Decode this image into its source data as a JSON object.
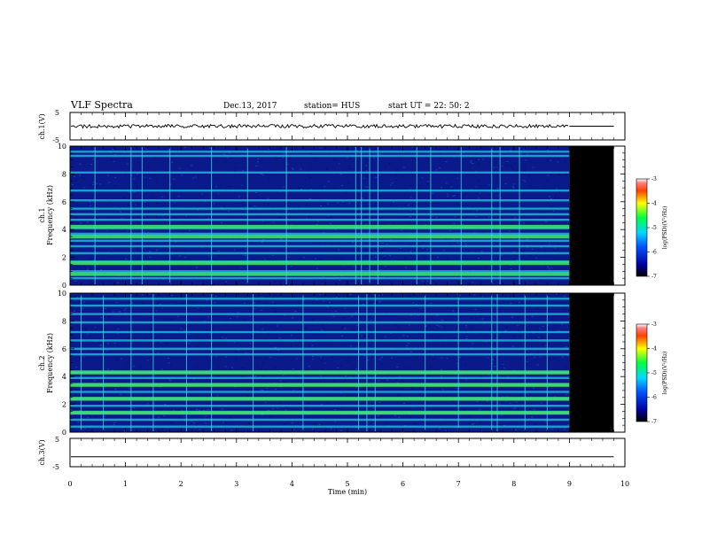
{
  "header": {
    "title": "VLF Spectra",
    "date": "Dec.13, 2017",
    "station": "station= HUS",
    "start_ut": "start  UT =   22: 50: 2"
  },
  "panels": {
    "ch1_wave": {
      "ylabel": "ch.1(V)",
      "yticks": [
        "5",
        "-5"
      ]
    },
    "ch1_spec": {
      "ylabel_line1": "ch.1",
      "ylabel_line2": "Frequency (kHz)"
    },
    "ch2_spec": {
      "ylabel_line1": "ch.2",
      "ylabel_line2": "Frequency (kHz)"
    },
    "ch3_wave": {
      "ylabel": "ch.3(V)",
      "yticks": [
        "5",
        "-5"
      ]
    }
  },
  "xaxis": {
    "label": "Time  (min)"
  },
  "colorbar": {
    "label": "log(PSD)(V²/Hz)",
    "ticks": [
      "-3",
      "-4",
      "-5",
      "-6",
      "-7"
    ]
  },
  "colors": {
    "spec_bg": "#0a1a8a",
    "band": "#18b8d8",
    "strong_band": "#3ee070",
    "line": "#40d8e8",
    "nodata": "#000000"
  },
  "chart_data": [
    {
      "type": "line",
      "panel": "ch1_wave",
      "xlim": [
        0,
        10
      ],
      "ylim": [
        -5,
        5
      ],
      "data_end_min": 9.0,
      "trend_level_v": 0.0,
      "xticks": [
        0,
        1,
        2,
        3,
        4,
        5,
        6,
        7,
        8,
        9,
        10
      ]
    },
    {
      "type": "heatmap",
      "panel": "ch1_spec",
      "xlim": [
        0,
        10
      ],
      "ylim": [
        0,
        10
      ],
      "yticks": [
        0,
        2,
        4,
        6,
        8,
        10
      ],
      "data_end_min": 9.0,
      "plot_end_min": 9.8,
      "bands_khz": [
        0.5,
        1.0,
        1.7,
        2.3,
        2.8,
        3.2,
        3.7,
        4.1,
        4.7,
        5.1,
        5.5,
        6.1,
        6.8,
        8.1,
        9.3,
        9.6
      ],
      "strong_bands_khz": [
        0.8,
        1.6,
        3.5,
        4.2
      ],
      "impulse_times_min": [
        0.45,
        1.1,
        1.3,
        1.8,
        2.55,
        3.2,
        3.9,
        5.15,
        5.25,
        5.4,
        5.55,
        6.25,
        6.5,
        7.05,
        7.6,
        7.75,
        8.1
      ]
    },
    {
      "type": "heatmap",
      "panel": "ch2_spec",
      "xlim": [
        0,
        10
      ],
      "ylim": [
        0,
        10
      ],
      "yticks": [
        0,
        2,
        4,
        6,
        8,
        10
      ],
      "data_end_min": 9.0,
      "plot_end_min": 9.8,
      "bands_khz": [
        0.4,
        0.9,
        1.4,
        1.9,
        2.4,
        2.9,
        3.4,
        3.9,
        4.3,
        5.6,
        6.0,
        6.6,
        7.2,
        7.9,
        8.5,
        9.1,
        9.6
      ],
      "strong_bands_khz": [
        1.4,
        2.4,
        3.4,
        4.3
      ],
      "impulse_times_min": [
        0.2,
        0.6,
        1.1,
        1.5,
        2.1,
        2.55,
        3.3,
        4.2,
        5.2,
        5.35,
        5.5,
        6.4,
        7.0,
        7.6,
        7.7,
        8.2,
        8.6
      ]
    },
    {
      "type": "line",
      "panel": "ch3_wave",
      "xlim": [
        0,
        10
      ],
      "ylim": [
        -5,
        5
      ],
      "data_end_min": 9.8,
      "trend_level_v": -1.5,
      "xticks": [
        0,
        1,
        2,
        3,
        4,
        5,
        6,
        7,
        8,
        9,
        10
      ]
    }
  ]
}
